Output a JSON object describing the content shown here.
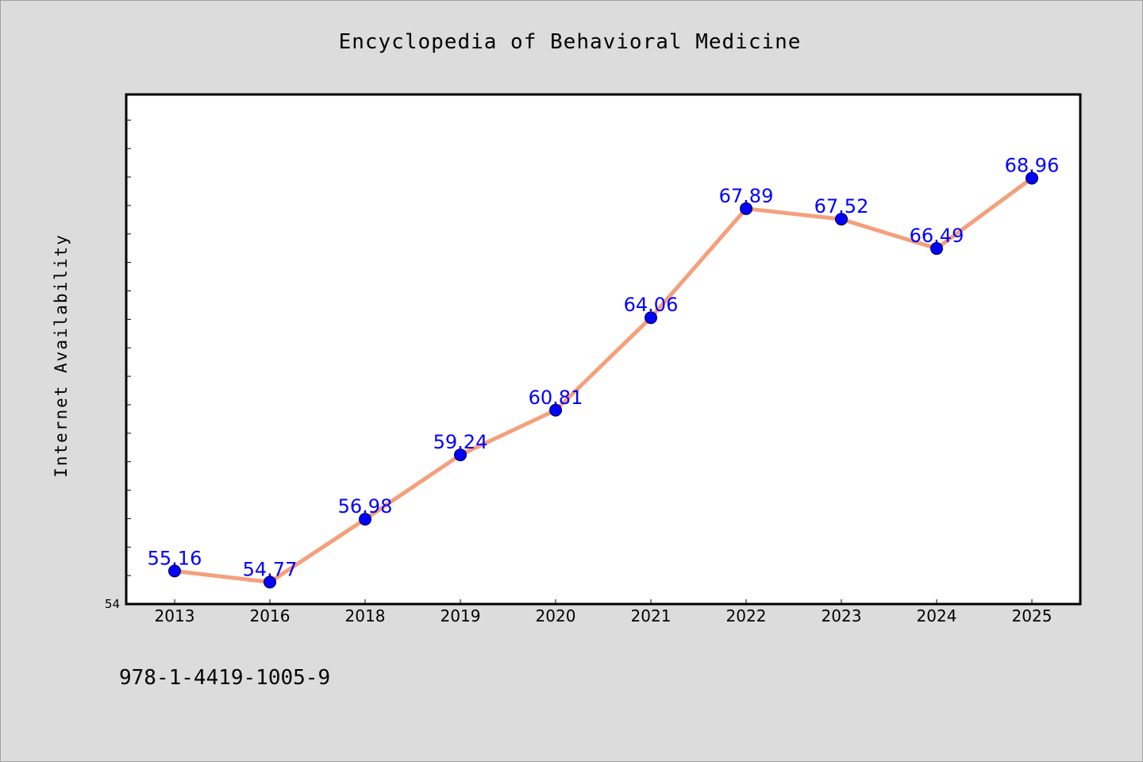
{
  "chart_data": {
    "type": "line",
    "title": "Encyclopedia of Behavioral Medicine",
    "xlabel": "",
    "ylabel": "Internet Availability",
    "categories": [
      "2013",
      "2016",
      "2018",
      "2019",
      "2020",
      "2021",
      "2022",
      "2023",
      "2024",
      "2025"
    ],
    "series": [
      {
        "values": [
          55.16,
          54.77,
          56.98,
          59.24,
          60.81,
          64.06,
          67.89,
          67.52,
          66.49,
          68.96
        ],
        "labels": [
          "55.16",
          "54.77",
          "56.98",
          "59.24",
          "60.81",
          "64.06",
          "67.89",
          "67.52",
          "66.49",
          "68.96"
        ]
      }
    ],
    "ylim": [
      54,
      71.9
    ],
    "ytick_labels": [
      "54"
    ],
    "grid": false,
    "legend": "none"
  },
  "footer": {
    "isbn": "978-1-4419-1005-9"
  },
  "colors": {
    "background": "#dcdcdc",
    "plot_background": "#ffffff",
    "line": "#f4a07c",
    "marker": "#0000ff",
    "point_label": "#0000ff"
  }
}
